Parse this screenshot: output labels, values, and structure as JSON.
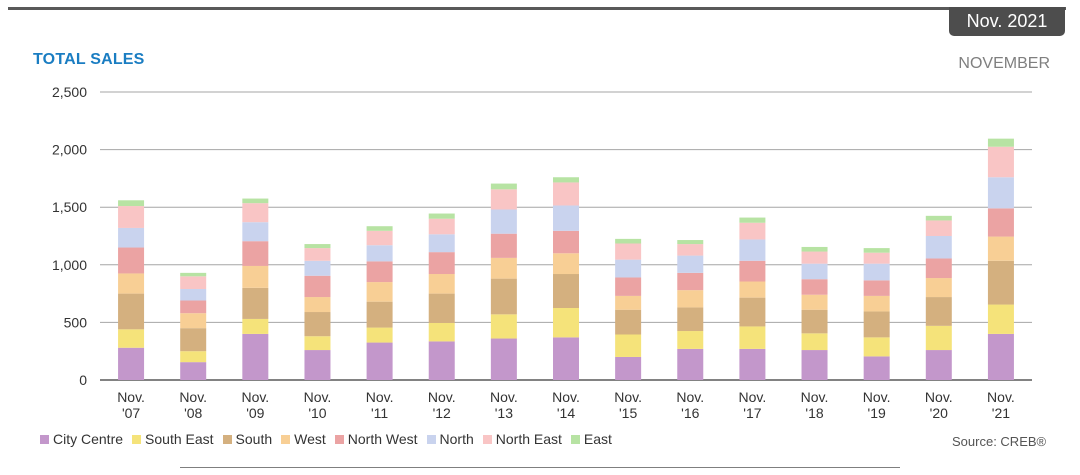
{
  "badge": "Nov. 2021",
  "title": "TOTAL SALES",
  "period": "NOVEMBER",
  "source": "Source: CREB®",
  "chart_data": {
    "type": "bar",
    "stacked": true,
    "title": "TOTAL SALES",
    "subtitle": "NOVEMBER",
    "xlabel": "",
    "ylabel": "",
    "ylim": [
      0,
      2500
    ],
    "yticks": [
      0,
      500,
      1000,
      1500,
      2000,
      2500
    ],
    "ytick_labels": [
      "0",
      "500",
      "1,000",
      "1,500",
      "2,000",
      "2,500"
    ],
    "grid": true,
    "legend_position": "bottom",
    "categories": [
      [
        "Nov.",
        "'07"
      ],
      [
        "Nov.",
        "'08"
      ],
      [
        "Nov.",
        "'09"
      ],
      [
        "Nov.",
        "'10"
      ],
      [
        "Nov.",
        "'11"
      ],
      [
        "Nov.",
        "'12"
      ],
      [
        "Nov.",
        "'13"
      ],
      [
        "Nov.",
        "'14"
      ],
      [
        "Nov.",
        "'15"
      ],
      [
        "Nov.",
        "'16"
      ],
      [
        "Nov.",
        "'17"
      ],
      [
        "Nov.",
        "'18"
      ],
      [
        "Nov.",
        "'19"
      ],
      [
        "Nov.",
        "'20"
      ],
      [
        "Nov.",
        "'21"
      ]
    ],
    "series": [
      {
        "name": "City Centre",
        "color": "#c397cb",
        "values": [
          280,
          155,
          400,
          260,
          325,
          335,
          360,
          370,
          200,
          270,
          270,
          260,
          205,
          260,
          400
        ]
      },
      {
        "name": "South East",
        "color": "#f5e37a",
        "values": [
          160,
          95,
          130,
          120,
          130,
          160,
          210,
          255,
          195,
          155,
          195,
          145,
          165,
          210,
          255
        ]
      },
      {
        "name": "South",
        "color": "#d4b07f",
        "values": [
          310,
          200,
          270,
          210,
          225,
          255,
          310,
          295,
          215,
          205,
          250,
          205,
          225,
          250,
          380
        ]
      },
      {
        "name": "West",
        "color": "#f8cf95",
        "values": [
          175,
          130,
          190,
          130,
          170,
          170,
          180,
          180,
          120,
          150,
          140,
          130,
          135,
          165,
          210
        ]
      },
      {
        "name": "North West",
        "color": "#eba3a3",
        "values": [
          225,
          110,
          215,
          185,
          180,
          190,
          210,
          195,
          160,
          150,
          180,
          135,
          135,
          170,
          245
        ]
      },
      {
        "name": "North",
        "color": "#c9d3ee",
        "values": [
          170,
          100,
          165,
          130,
          140,
          155,
          210,
          220,
          155,
          150,
          185,
          135,
          145,
          195,
          270
        ]
      },
      {
        "name": "North East",
        "color": "#f9c5c5",
        "values": [
          190,
          110,
          165,
          110,
          125,
          135,
          175,
          200,
          140,
          100,
          145,
          105,
          95,
          135,
          265
        ]
      },
      {
        "name": "East",
        "color": "#b7e3a3",
        "values": [
          50,
          30,
          40,
          35,
          40,
          45,
          50,
          45,
          40,
          35,
          45,
          40,
          40,
          40,
          70
        ]
      }
    ]
  }
}
